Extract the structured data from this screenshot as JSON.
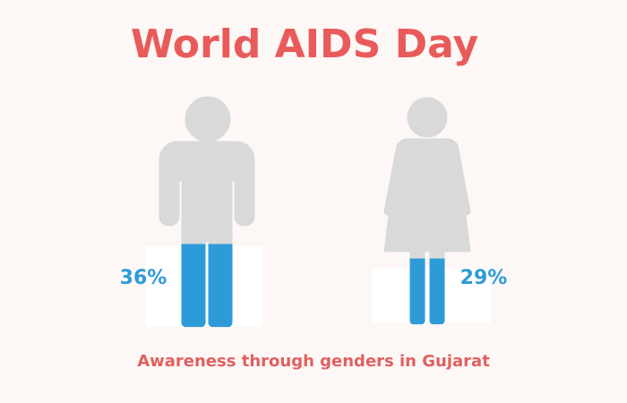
{
  "chart_data": {
    "type": "pictogram",
    "title": "World AIDS Day",
    "subtitle": "Awareness through genders in Gujarat",
    "values": [
      36,
      29
    ],
    "value_labels": [
      "36%",
      "29%"
    ],
    "ylim": [
      0,
      100
    ],
    "color": "#2e9bd9",
    "base_color": "#d9d9d9"
  }
}
